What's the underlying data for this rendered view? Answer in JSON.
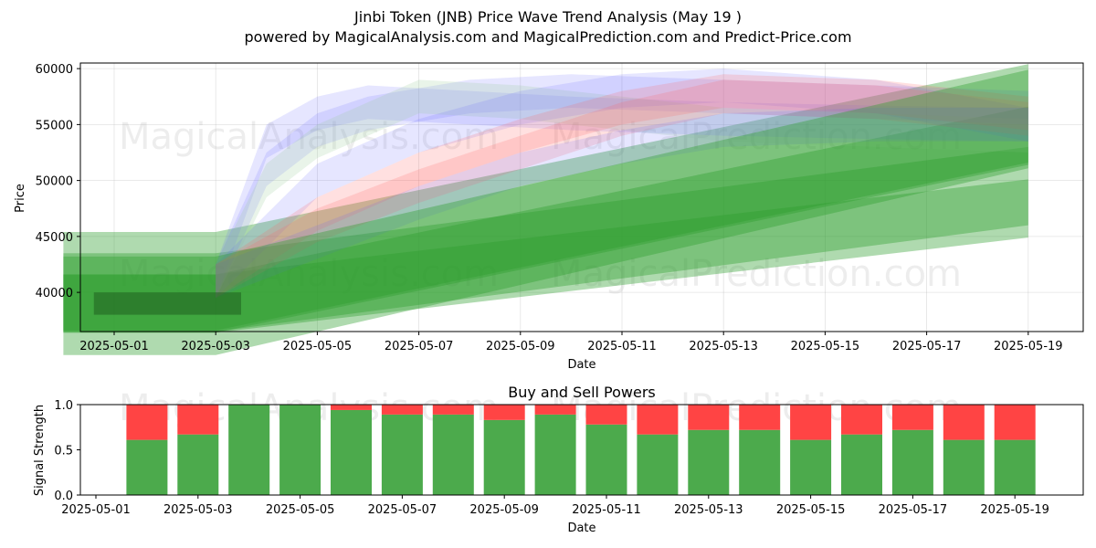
{
  "title": "Jinbi Token (JNB) Price Wave Trend Analysis (May 19 )",
  "subtitle": "powered by MagicalAnalysis.com and MagicalPrediction.com and Predict-Price.com",
  "watermarks": [
    "MagicalAnalysis.com",
    "MagicalPrediction.com"
  ],
  "chart_data": [
    {
      "type": "area",
      "title": "",
      "xlabel": "Date",
      "ylabel": "Price",
      "ylim": [
        36500,
        60500
      ],
      "x_ticks": [
        "2025-05-01",
        "2025-05-03",
        "2025-05-05",
        "2025-05-07",
        "2025-05-09",
        "2025-05-11",
        "2025-05-13",
        "2025-05-15",
        "2025-05-17",
        "2025-05-19"
      ],
      "y_ticks": [
        40000,
        45000,
        50000,
        55000,
        60000
      ],
      "colors": {
        "green": "#2e9e2e",
        "blue": "#6666ff",
        "red": "#ff6666",
        "lightgreen": "#9ccf9c"
      },
      "bands": [
        {
          "color": "green",
          "x": [
            "2025-04-30",
            "2025-05-03",
            "2025-05-19"
          ],
          "y": [
            39000,
            39000,
            54000
          ]
        },
        {
          "color": "green",
          "x": [
            "2025-04-30",
            "2025-05-03",
            "2025-05-19"
          ],
          "y": [
            40000,
            40000,
            49500
          ]
        },
        {
          "color": "green",
          "x": [
            "2025-04-30",
            "2025-05-03",
            "2025-05-19"
          ],
          "y": [
            41000,
            41000,
            56000
          ]
        },
        {
          "color": "green",
          "x": [
            "2025-04-30",
            "2025-05-03",
            "2025-05-19"
          ],
          "y": [
            39000,
            39000,
            47500
          ]
        },
        {
          "color": "blue",
          "x": [
            "2025-05-03",
            "2025-05-04",
            "2025-05-05",
            "2025-05-06",
            "2025-05-08",
            "2025-05-10",
            "2025-05-13",
            "2025-05-16",
            "2025-05-19"
          ],
          "y": [
            41000,
            53500,
            56000,
            57000,
            56500,
            56000,
            55500,
            55200,
            55000
          ]
        },
        {
          "color": "blue",
          "x": [
            "2025-05-03",
            "2025-05-04",
            "2025-05-05",
            "2025-05-06",
            "2025-05-08",
            "2025-05-10",
            "2025-05-13",
            "2025-05-16",
            "2025-05-19"
          ],
          "y": [
            41000,
            51000,
            54500,
            56000,
            57500,
            58000,
            57500,
            57000,
            56500
          ]
        },
        {
          "color": "lightgreen",
          "x": [
            "2025-05-03",
            "2025-05-04",
            "2025-05-05",
            "2025-05-07",
            "2025-05-09",
            "2025-05-11",
            "2025-05-13",
            "2025-05-16",
            "2025-05-19"
          ],
          "y": [
            41000,
            50000,
            53500,
            57500,
            57000,
            56000,
            55000,
            54500,
            54000
          ]
        },
        {
          "color": "blue",
          "x": [
            "2025-05-03",
            "2025-05-05",
            "2025-05-07",
            "2025-05-09",
            "2025-05-11",
            "2025-05-13",
            "2025-05-16",
            "2025-05-19"
          ],
          "y": [
            41000,
            50000,
            54000,
            56500,
            58000,
            58500,
            57500,
            55000
          ]
        },
        {
          "color": "red",
          "x": [
            "2025-05-03",
            "2025-05-05",
            "2025-05-07",
            "2025-05-09",
            "2025-05-11",
            "2025-05-13",
            "2025-05-16",
            "2025-05-19"
          ],
          "y": [
            41000,
            47000,
            51000,
            54000,
            56500,
            58000,
            57500,
            56000
          ]
        },
        {
          "color": "red",
          "x": [
            "2025-05-03",
            "2025-05-05",
            "2025-05-07",
            "2025-05-09",
            "2025-05-11",
            "2025-05-13",
            "2025-05-16",
            "2025-05-19"
          ],
          "y": [
            41000,
            46000,
            49500,
            52500,
            55500,
            57500,
            57000,
            55500
          ]
        },
        {
          "color": "blue",
          "x": [
            "2025-05-03",
            "2025-05-05",
            "2025-05-07",
            "2025-05-09",
            "2025-05-11",
            "2025-05-13",
            "2025-05-16",
            "2025-05-19"
          ],
          "y": [
            41000,
            44500,
            48000,
            51000,
            53000,
            54500,
            55000,
            55000
          ]
        },
        {
          "color": "green",
          "x": [
            "2025-04-30",
            "2025-05-03",
            "2025-05-19"
          ],
          "y": [
            38800,
            38800,
            55500
          ]
        }
      ]
    },
    {
      "type": "bar",
      "title": "Buy and Sell Powers",
      "xlabel": "Date",
      "ylabel": "Signal Strength",
      "ylim": [
        0,
        1.0
      ],
      "x_ticks": [
        "2025-05-01",
        "2025-05-03",
        "2025-05-05",
        "2025-05-07",
        "2025-05-09",
        "2025-05-11",
        "2025-05-13",
        "2025-05-15",
        "2025-05-17",
        "2025-05-19"
      ],
      "y_ticks": [
        "0.0",
        "0.5",
        "1.0"
      ],
      "colors": {
        "buy": "#4caa4c",
        "sell": "#ff4444"
      },
      "categories": [
        "2025-05-02",
        "2025-05-03",
        "2025-05-04",
        "2025-05-05",
        "2025-05-06",
        "2025-05-07",
        "2025-05-08",
        "2025-05-09",
        "2025-05-10",
        "2025-05-11",
        "2025-05-12",
        "2025-05-13",
        "2025-05-14",
        "2025-05-15",
        "2025-05-16",
        "2025-05-17",
        "2025-05-18",
        "2025-05-19"
      ],
      "series": [
        {
          "key": "buy",
          "values": [
            0.61,
            0.67,
            1.0,
            1.0,
            0.94,
            0.89,
            0.89,
            0.83,
            0.89,
            0.78,
            0.67,
            0.72,
            0.72,
            0.61,
            0.67,
            0.72,
            0.61,
            0.61
          ]
        },
        {
          "key": "sell",
          "values": [
            0.39,
            0.33,
            0.0,
            0.0,
            0.06,
            0.11,
            0.11,
            0.17,
            0.11,
            0.22,
            0.33,
            0.28,
            0.28,
            0.39,
            0.33,
            0.28,
            0.39,
            0.39
          ]
        }
      ]
    }
  ]
}
